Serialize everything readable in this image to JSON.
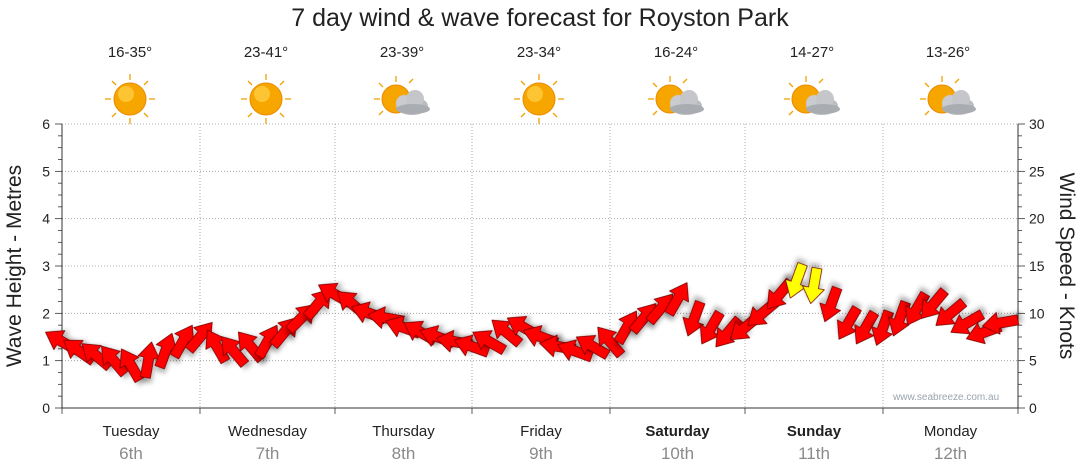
{
  "header": {
    "title": "7 day wind & wave forecast for Royston Park"
  },
  "days": [
    {
      "name": "Tuesday",
      "date": "6th",
      "temp": "16-35°",
      "icon": "sun-icon",
      "bold": false
    },
    {
      "name": "Wednesday",
      "date": "7th",
      "temp": "23-41°",
      "icon": "sun-icon",
      "bold": false
    },
    {
      "name": "Thursday",
      "date": "8th",
      "temp": "23-39°",
      "icon": "sun-cloud-icon",
      "bold": false
    },
    {
      "name": "Friday",
      "date": "9th",
      "temp": "23-34°",
      "icon": "sun-icon",
      "bold": false
    },
    {
      "name": "Saturday",
      "date": "10th",
      "temp": "16-24°",
      "icon": "sun-cloud-icon",
      "bold": true
    },
    {
      "name": "Sunday",
      "date": "11th",
      "temp": "14-27°",
      "icon": "sun-cloud-icon",
      "bold": true
    },
    {
      "name": "Monday",
      "date": "12th",
      "temp": "13-26°",
      "icon": "sun-cloud-icon",
      "bold": false
    }
  ],
  "watermark": "www.seabreeze.com.au",
  "colors": {
    "wind_normal": "#ff0000",
    "wind_strong": "#ffff00",
    "grid": "#999999"
  },
  "chart_data": {
    "type": "scatter",
    "x_unit": "hour from start of Tuesday 6th",
    "y_left": {
      "label": "Wave Height - Metres",
      "range": [
        0,
        6
      ],
      "ticks": [
        0,
        1,
        2,
        3,
        4,
        5,
        6
      ]
    },
    "y_right": {
      "label": "Wind Speed - Knots",
      "range": [
        0,
        30
      ],
      "ticks": [
        0,
        5,
        10,
        15,
        20,
        25,
        30
      ]
    },
    "x_range": [
      -4,
      168
    ],
    "grid": true,
    "series": [
      {
        "marker": "wind-direction-arrow",
        "points": [
          {
            "x": 0,
            "speed": 7.0,
            "dir": 300
          },
          {
            "x": 3,
            "speed": 6.0,
            "dir": 305
          },
          {
            "x": 6,
            "speed": 5.5,
            "dir": 310
          },
          {
            "x": 9,
            "speed": 5.0,
            "dir": 320
          },
          {
            "x": 12,
            "speed": 4.5,
            "dir": 330
          },
          {
            "x": 15,
            "speed": 5.0,
            "dir": 10
          },
          {
            "x": 18,
            "speed": 6.0,
            "dir": 20
          },
          {
            "x": 21,
            "speed": 7.0,
            "dir": 30
          },
          {
            "x": 24,
            "speed": 7.5,
            "dir": 40
          },
          {
            "x": 27,
            "speed": 6.5,
            "dir": 330
          },
          {
            "x": 30,
            "speed": 6.0,
            "dir": 320
          },
          {
            "x": 33,
            "speed": 6.5,
            "dir": 320
          },
          {
            "x": 36,
            "speed": 7.0,
            "dir": 30
          },
          {
            "x": 39,
            "speed": 8.0,
            "dir": 40
          },
          {
            "x": 42,
            "speed": 9.5,
            "dir": 45
          },
          {
            "x": 45,
            "speed": 11.0,
            "dir": 40
          },
          {
            "x": 48,
            "speed": 12.0,
            "dir": 300
          },
          {
            "x": 51,
            "speed": 11.0,
            "dir": 310
          },
          {
            "x": 54,
            "speed": 10.0,
            "dir": 290
          },
          {
            "x": 57,
            "speed": 9.5,
            "dir": 280
          },
          {
            "x": 60,
            "speed": 8.5,
            "dir": 290
          },
          {
            "x": 63,
            "speed": 8.0,
            "dir": 300
          },
          {
            "x": 66,
            "speed": 7.5,
            "dir": 290
          },
          {
            "x": 69,
            "speed": 7.0,
            "dir": 280
          },
          {
            "x": 72,
            "speed": 6.5,
            "dir": 290
          },
          {
            "x": 75,
            "speed": 7.0,
            "dir": 300
          },
          {
            "x": 78,
            "speed": 8.0,
            "dir": 310
          },
          {
            "x": 81,
            "speed": 8.5,
            "dir": 300
          },
          {
            "x": 84,
            "speed": 7.5,
            "dir": 290
          },
          {
            "x": 87,
            "speed": 6.5,
            "dir": 280
          },
          {
            "x": 90,
            "speed": 6.0,
            "dir": 290
          },
          {
            "x": 93,
            "speed": 6.5,
            "dir": 300
          },
          {
            "x": 96,
            "speed": 7.0,
            "dir": 320
          },
          {
            "x": 99,
            "speed": 8.5,
            "dir": 30
          },
          {
            "x": 102,
            "speed": 9.5,
            "dir": 40
          },
          {
            "x": 105,
            "speed": 10.5,
            "dir": 40
          },
          {
            "x": 108,
            "speed": 11.5,
            "dir": 30
          },
          {
            "x": 111,
            "speed": 9.5,
            "dir": 200
          },
          {
            "x": 114,
            "speed": 8.5,
            "dir": 210
          },
          {
            "x": 117,
            "speed": 8.0,
            "dir": 220
          },
          {
            "x": 120,
            "speed": 8.5,
            "dir": 230
          },
          {
            "x": 123,
            "speed": 10.0,
            "dir": 230
          },
          {
            "x": 126,
            "speed": 12.0,
            "dir": 220
          },
          {
            "x": 129,
            "speed": 13.5,
            "dir": 200
          },
          {
            "x": 132,
            "speed": 13.0,
            "dir": 190
          },
          {
            "x": 135,
            "speed": 11.0,
            "dir": 200
          },
          {
            "x": 138,
            "speed": 9.0,
            "dir": 210
          },
          {
            "x": 141,
            "speed": 8.5,
            "dir": 210
          },
          {
            "x": 144,
            "speed": 8.5,
            "dir": 200
          },
          {
            "x": 147,
            "speed": 9.5,
            "dir": 200
          },
          {
            "x": 150,
            "speed": 10.5,
            "dir": 210
          },
          {
            "x": 153,
            "speed": 11.0,
            "dir": 220
          },
          {
            "x": 156,
            "speed": 10.0,
            "dir": 230
          },
          {
            "x": 159,
            "speed": 9.0,
            "dir": 240
          },
          {
            "x": 162,
            "speed": 8.0,
            "dir": 250
          },
          {
            "x": 165,
            "speed": 9.0,
            "dir": 260
          }
        ]
      }
    ]
  }
}
